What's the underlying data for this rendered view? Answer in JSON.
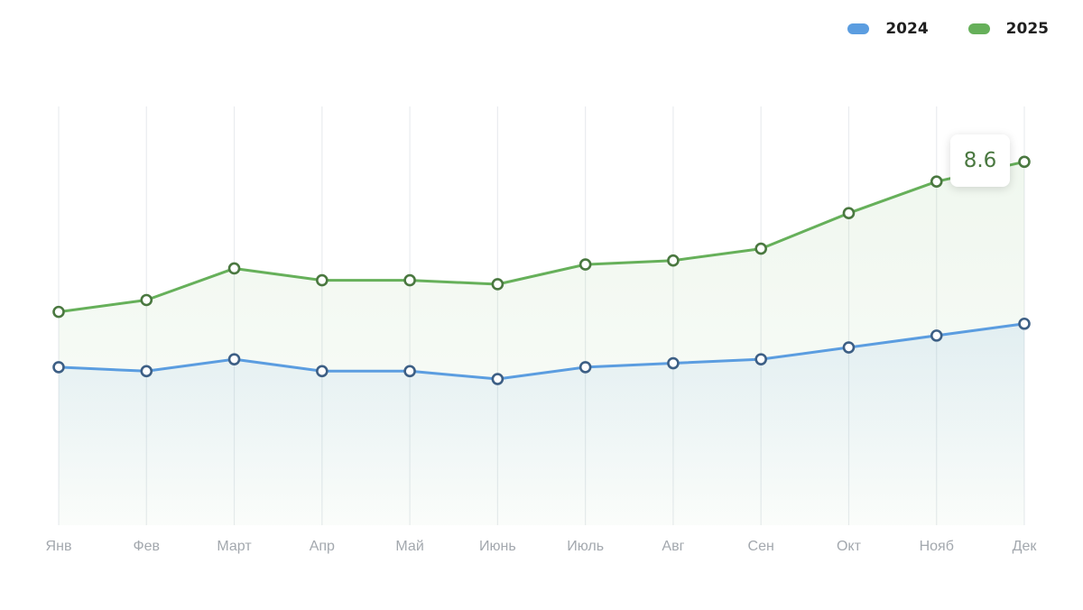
{
  "chart_data": {
    "type": "area",
    "categories": [
      "Янв",
      "Фев",
      "Март",
      "Апр",
      "Май",
      "Июнь",
      "Июль",
      "Авг",
      "Сен",
      "Окт",
      "Нояб",
      "Дек"
    ],
    "series": [
      {
        "name": "2024",
        "color": "#5b9de0",
        "marker_color": "#3d5f85",
        "values": [
          3.4,
          3.3,
          3.6,
          3.3,
          3.3,
          3.1,
          3.4,
          3.5,
          3.6,
          3.9,
          4.2,
          4.5
        ]
      },
      {
        "name": "2025",
        "color": "#66b05a",
        "marker_color": "#4a7840",
        "values": [
          4.8,
          5.1,
          5.9,
          5.6,
          5.6,
          5.5,
          6.0,
          6.1,
          6.4,
          7.3,
          8.1,
          8.6
        ]
      }
    ],
    "ylim": [
      -0.6,
      10.0
    ],
    "grid": "vertical",
    "legend": "top-right",
    "tooltip": {
      "series": "2025",
      "category": "Дек",
      "text": "8.6"
    }
  }
}
